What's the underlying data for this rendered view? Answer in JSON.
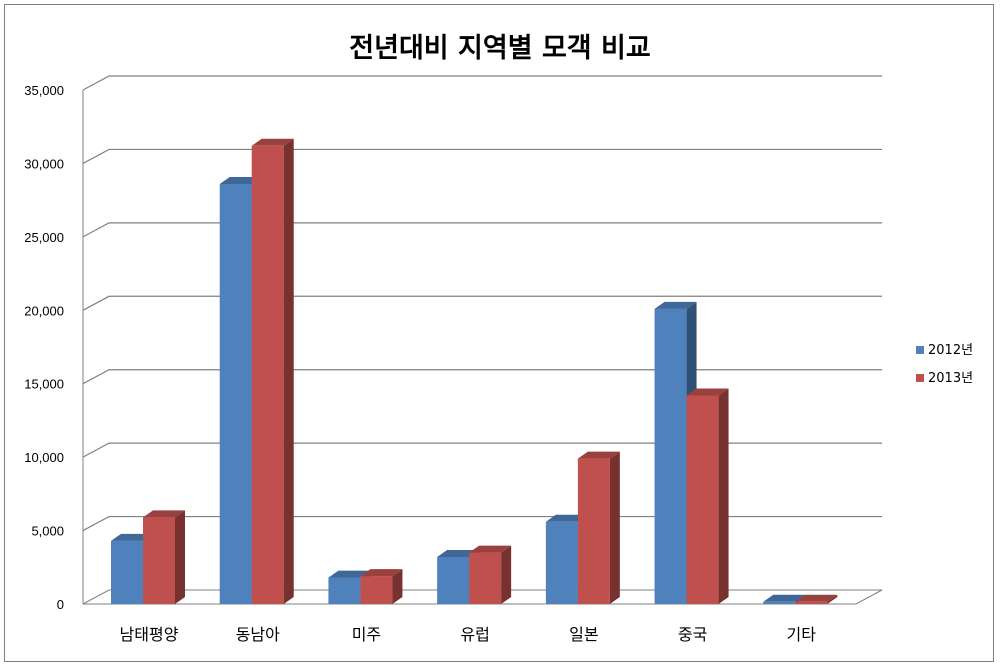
{
  "chart_data": {
    "type": "bar",
    "title": "전년대비 지역별 모객 비교",
    "categories": [
      "남태평양",
      "동남아",
      "미주",
      "유럽",
      "일본",
      "중국",
      "기타"
    ],
    "series": [
      {
        "name": "2012년",
        "color": "#4f81bd",
        "values": [
          4300,
          28600,
          1800,
          3200,
          5600,
          20100,
          150
        ]
      },
      {
        "name": "2013년",
        "color": "#c0504d",
        "values": [
          5900,
          31200,
          1900,
          3500,
          9900,
          14200,
          150
        ]
      }
    ],
    "ylim": [
      0,
      35000
    ],
    "yticks": [
      "0",
      "5,000",
      "10,000",
      "15,000",
      "20,000",
      "25,000",
      "30,000",
      "35,000"
    ],
    "grid": true,
    "legend_position": "right",
    "style": "3d-clustered-column"
  }
}
